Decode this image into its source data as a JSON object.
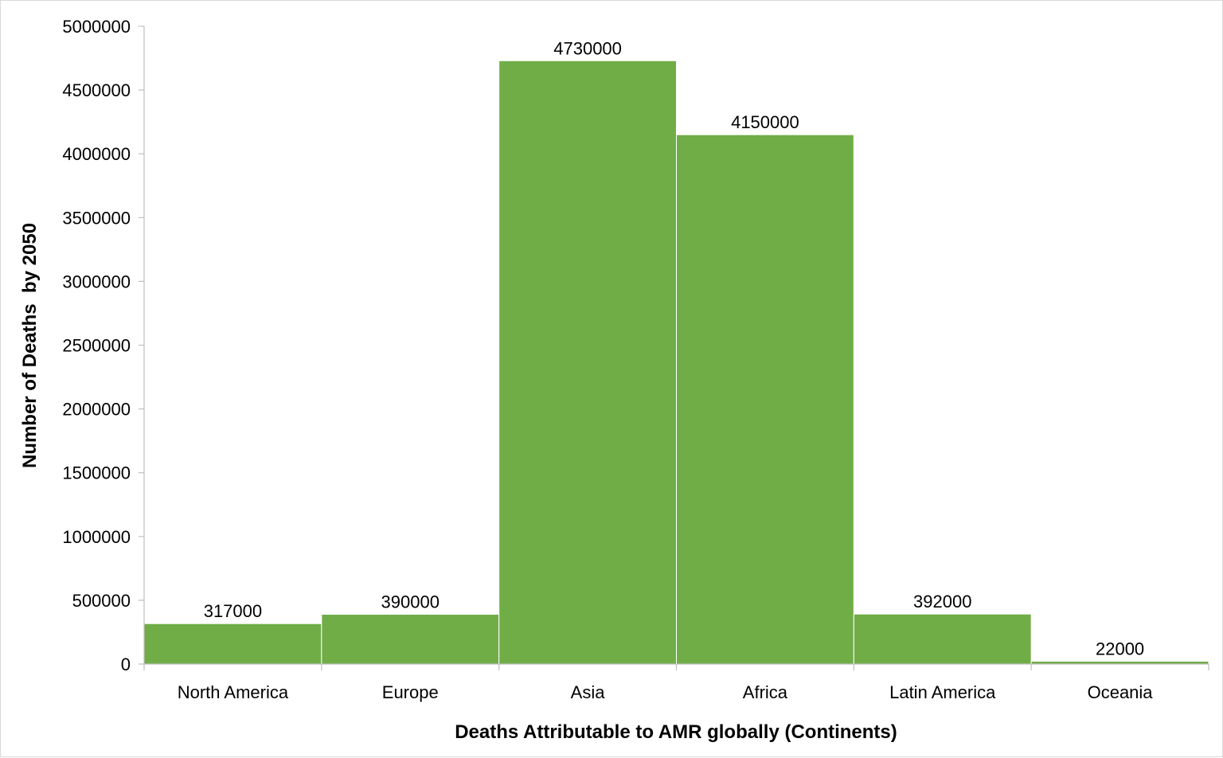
{
  "chart_data": {
    "type": "bar",
    "categories": [
      "North America",
      "Europe",
      "Asia",
      "Africa",
      "Latin America",
      "Oceania"
    ],
    "values": [
      317000,
      390000,
      4730000,
      4150000,
      392000,
      22000
    ],
    "data_labels": [
      "317000",
      "390000",
      "4730000",
      "4150000",
      "392000",
      "22000"
    ],
    "title": "",
    "xlabel": "Deaths Attributable to AMR globally (Continents)",
    "ylabel": "Number of Deaths  by 2050",
    "ylim": [
      0,
      5000000
    ],
    "yticks": [
      "0",
      "500000",
      "1000000",
      "1500000",
      "2000000",
      "2500000",
      "3000000",
      "3500000",
      "4000000",
      "4500000",
      "5000000"
    ],
    "grid": false,
    "legend": "none",
    "bar_color": "#70ad47",
    "bar_edge_color": "#ffffff",
    "axis_color": "#bfbfbf"
  }
}
